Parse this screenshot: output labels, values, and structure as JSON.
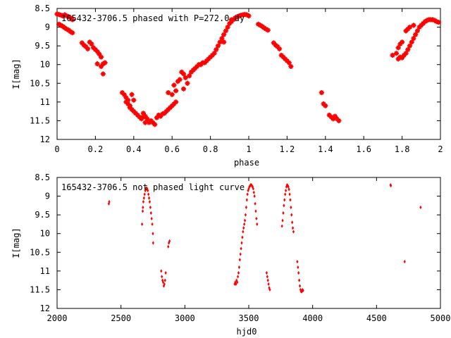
{
  "colors": {
    "marker": "#ff0000",
    "axis": "#000000",
    "background": "#ffffff"
  },
  "chart_data": [
    {
      "type": "scatter",
      "title": "165432-3706.5 phased with P=272.0 dy",
      "xlabel": "phase",
      "ylabel": "I[mag]",
      "xlim": [
        0,
        2
      ],
      "ylim": [
        12,
        8.5
      ],
      "y_inverted": true,
      "grid": false,
      "x_ticks": [
        "0",
        "0.2",
        "0.4",
        "0.6",
        "0.8",
        "1",
        "1.2",
        "1.4",
        "1.6",
        "1.8",
        "2"
      ],
      "y_ticks": [
        "8.5",
        "9",
        "9.5",
        "10",
        "10.5",
        "11",
        "11.5",
        "12"
      ],
      "marker": "star",
      "points": [
        [
          0.0,
          8.65
        ],
        [
          0.01,
          8.66
        ],
        [
          0.02,
          8.68
        ],
        [
          0.03,
          8.7
        ],
        [
          0.04,
          8.67
        ],
        [
          0.05,
          8.7
        ],
        [
          0.06,
          8.72
        ],
        [
          0.07,
          8.75
        ],
        [
          0.08,
          8.8
        ],
        [
          0.01,
          8.92
        ],
        [
          0.02,
          8.95
        ],
        [
          0.03,
          8.98
        ],
        [
          0.04,
          9.02
        ],
        [
          0.05,
          9.05
        ],
        [
          0.06,
          9.08
        ],
        [
          0.07,
          9.12
        ],
        [
          0.08,
          9.15
        ],
        [
          0.13,
          9.42
        ],
        [
          0.14,
          9.48
        ],
        [
          0.15,
          9.52
        ],
        [
          0.16,
          9.58
        ],
        [
          0.17,
          9.4
        ],
        [
          0.18,
          9.45
        ],
        [
          0.19,
          9.55
        ],
        [
          0.2,
          9.6
        ],
        [
          0.21,
          9.65
        ],
        [
          0.22,
          9.72
        ],
        [
          0.23,
          9.8
        ],
        [
          0.21,
          9.98
        ],
        [
          0.24,
          9.98
        ],
        [
          0.25,
          9.95
        ],
        [
          0.23,
          10.05
        ],
        [
          0.24,
          10.25
        ],
        [
          0.34,
          10.75
        ],
        [
          0.35,
          10.8
        ],
        [
          0.36,
          10.88
        ],
        [
          0.37,
          10.95
        ],
        [
          0.36,
          11.0
        ],
        [
          0.37,
          11.05
        ],
        [
          0.38,
          11.1
        ],
        [
          0.38,
          11.15
        ],
        [
          0.39,
          11.2
        ],
        [
          0.4,
          11.25
        ],
        [
          0.41,
          11.3
        ],
        [
          0.39,
          10.8
        ],
        [
          0.4,
          10.95
        ],
        [
          0.42,
          11.35
        ],
        [
          0.43,
          11.4
        ],
        [
          0.44,
          11.45
        ],
        [
          0.45,
          11.4
        ],
        [
          0.45,
          11.3
        ],
        [
          0.46,
          11.38
        ],
        [
          0.47,
          11.45
        ],
        [
          0.48,
          11.55
        ],
        [
          0.46,
          11.55
        ],
        [
          0.49,
          11.5
        ],
        [
          0.5,
          11.55
        ],
        [
          0.51,
          11.6
        ],
        [
          0.52,
          11.42
        ],
        [
          0.53,
          11.35
        ],
        [
          0.54,
          11.38
        ],
        [
          0.55,
          11.32
        ],
        [
          0.56,
          11.3
        ],
        [
          0.57,
          11.25
        ],
        [
          0.58,
          11.2
        ],
        [
          0.59,
          11.15
        ],
        [
          0.6,
          11.1
        ],
        [
          0.61,
          11.05
        ],
        [
          0.62,
          11.0
        ],
        [
          0.62,
          10.7
        ],
        [
          0.58,
          10.75
        ],
        [
          0.6,
          10.8
        ],
        [
          0.61,
          10.55
        ],
        [
          0.63,
          10.45
        ],
        [
          0.64,
          10.4
        ],
        [
          0.65,
          10.2
        ],
        [
          0.66,
          10.25
        ],
        [
          0.67,
          10.35
        ],
        [
          0.68,
          10.5
        ],
        [
          0.66,
          10.65
        ],
        [
          0.69,
          10.3
        ],
        [
          0.7,
          10.2
        ],
        [
          0.71,
          10.15
        ],
        [
          0.72,
          10.1
        ],
        [
          0.73,
          10.05
        ],
        [
          0.74,
          10.0
        ],
        [
          0.75,
          10.0
        ],
        [
          0.76,
          9.95
        ],
        [
          0.77,
          9.95
        ],
        [
          0.78,
          9.9
        ],
        [
          0.79,
          9.85
        ],
        [
          0.8,
          9.8
        ],
        [
          0.81,
          9.75
        ],
        [
          0.82,
          9.7
        ],
        [
          0.83,
          9.6
        ],
        [
          0.84,
          9.5
        ],
        [
          0.85,
          9.4
        ],
        [
          0.86,
          9.3
        ],
        [
          0.87,
          9.2
        ],
        [
          0.87,
          9.4
        ],
        [
          0.88,
          9.1
        ],
        [
          0.89,
          9.0
        ],
        [
          0.9,
          8.9
        ],
        [
          0.91,
          8.85
        ],
        [
          0.92,
          8.8
        ],
        [
          0.93,
          8.75
        ],
        [
          0.94,
          8.72
        ],
        [
          0.95,
          8.7
        ],
        [
          0.96,
          8.68
        ],
        [
          0.97,
          8.67
        ],
        [
          0.98,
          8.66
        ],
        [
          0.99,
          8.67
        ],
        [
          1.0,
          8.7
        ],
        [
          0.91,
          8.8
        ],
        [
          0.93,
          8.75
        ],
        [
          0.95,
          8.7
        ],
        [
          1.05,
          8.92
        ],
        [
          1.06,
          8.95
        ],
        [
          1.07,
          8.98
        ],
        [
          1.08,
          9.02
        ],
        [
          1.09,
          9.05
        ],
        [
          1.1,
          9.08
        ],
        [
          1.13,
          9.42
        ],
        [
          1.14,
          9.48
        ],
        [
          1.15,
          9.52
        ],
        [
          1.16,
          9.58
        ],
        [
          1.17,
          9.75
        ],
        [
          1.18,
          9.8
        ],
        [
          1.19,
          9.85
        ],
        [
          1.2,
          9.9
        ],
        [
          1.21,
          9.95
        ],
        [
          1.22,
          10.05
        ],
        [
          1.38,
          10.75
        ],
        [
          1.39,
          11.05
        ],
        [
          1.4,
          11.1
        ],
        [
          1.42,
          11.35
        ],
        [
          1.43,
          11.4
        ],
        [
          1.44,
          11.45
        ],
        [
          1.45,
          11.38
        ],
        [
          1.46,
          11.45
        ],
        [
          1.47,
          11.5
        ],
        [
          1.75,
          9.75
        ],
        [
          1.77,
          9.7
        ],
        [
          1.78,
          9.55
        ],
        [
          1.79,
          9.45
        ],
        [
          1.8,
          9.4
        ],
        [
          1.78,
          9.85
        ],
        [
          1.79,
          9.8
        ],
        [
          1.8,
          9.82
        ],
        [
          1.81,
          9.75
        ],
        [
          1.82,
          9.7
        ],
        [
          1.83,
          9.6
        ],
        [
          1.84,
          9.5
        ],
        [
          1.85,
          9.4
        ],
        [
          1.86,
          9.3
        ],
        [
          1.87,
          9.2
        ],
        [
          1.88,
          9.1
        ],
        [
          1.89,
          9.0
        ],
        [
          1.9,
          8.95
        ],
        [
          1.91,
          8.9
        ],
        [
          1.92,
          8.85
        ],
        [
          1.93,
          8.82
        ],
        [
          1.94,
          8.8
        ],
        [
          1.95,
          8.8
        ],
        [
          1.96,
          8.8
        ],
        [
          1.97,
          8.82
        ],
        [
          1.98,
          8.85
        ],
        [
          1.99,
          8.87
        ],
        [
          1.82,
          9.1
        ],
        [
          1.83,
          9.05
        ],
        [
          1.84,
          9.0
        ],
        [
          1.86,
          8.95
        ]
      ]
    },
    {
      "type": "scatter",
      "title": "165432-3706.5 not phased light curve",
      "xlabel": "hjd0",
      "ylabel": "I[mag]",
      "xlim": [
        2000,
        5000
      ],
      "ylim": [
        12,
        8.5
      ],
      "y_inverted": true,
      "grid": false,
      "x_ticks": [
        "2000",
        "2500",
        "3000",
        "3500",
        "4000",
        "4500",
        "5000"
      ],
      "y_ticks": [
        "8.5",
        "9",
        "9.5",
        "10",
        "10.5",
        "11",
        "11.5",
        "12"
      ],
      "marker": "diamond",
      "points": [
        [
          2405,
          9.2
        ],
        [
          2408,
          9.15
        ],
        [
          2665,
          9.75
        ],
        [
          2670,
          9.4
        ],
        [
          2672,
          9.3
        ],
        [
          2675,
          9.15
        ],
        [
          2680,
          9.05
        ],
        [
          2685,
          8.95
        ],
        [
          2690,
          8.85
        ],
        [
          2695,
          8.8
        ],
        [
          2700,
          8.78
        ],
        [
          2705,
          8.8
        ],
        [
          2710,
          8.85
        ],
        [
          2715,
          8.95
        ],
        [
          2720,
          9.05
        ],
        [
          2725,
          9.15
        ],
        [
          2730,
          9.3
        ],
        [
          2735,
          9.45
        ],
        [
          2740,
          9.6
        ],
        [
          2745,
          9.75
        ],
        [
          2750,
          10.0
        ],
        [
          2752,
          10.25
        ],
        [
          2815,
          11.0
        ],
        [
          2820,
          11.15
        ],
        [
          2825,
          11.25
        ],
        [
          2830,
          11.3
        ],
        [
          2835,
          11.4
        ],
        [
          2840,
          11.35
        ],
        [
          2845,
          11.25
        ],
        [
          2850,
          11.05
        ],
        [
          2870,
          10.35
        ],
        [
          2875,
          10.25
        ],
        [
          2880,
          10.2
        ],
        [
          3390,
          11.35
        ],
        [
          3395,
          11.3
        ],
        [
          3400,
          11.35
        ],
        [
          3405,
          11.25
        ],
        [
          3410,
          11.3
        ],
        [
          3415,
          11.15
        ],
        [
          3420,
          11.05
        ],
        [
          3425,
          10.9
        ],
        [
          3430,
          10.7
        ],
        [
          3435,
          10.55
        ],
        [
          3440,
          10.4
        ],
        [
          3445,
          10.25
        ],
        [
          3450,
          10.1
        ],
        [
          3455,
          9.95
        ],
        [
          3460,
          9.85
        ],
        [
          3465,
          9.75
        ],
        [
          3470,
          9.65
        ],
        [
          3475,
          9.5
        ],
        [
          3480,
          9.3
        ],
        [
          3485,
          9.1
        ],
        [
          3490,
          8.95
        ],
        [
          3495,
          8.85
        ],
        [
          3500,
          8.8
        ],
        [
          3505,
          8.75
        ],
        [
          3510,
          8.72
        ],
        [
          3515,
          8.7
        ],
        [
          3520,
          8.7
        ],
        [
          3525,
          8.72
        ],
        [
          3530,
          8.75
        ],
        [
          3535,
          8.8
        ],
        [
          3540,
          8.9
        ],
        [
          3545,
          9.0
        ],
        [
          3550,
          9.2
        ],
        [
          3555,
          9.4
        ],
        [
          3560,
          9.6
        ],
        [
          3565,
          9.75
        ],
        [
          3640,
          11.05
        ],
        [
          3645,
          11.15
        ],
        [
          3650,
          11.25
        ],
        [
          3655,
          11.35
        ],
        [
          3660,
          11.45
        ],
        [
          3665,
          11.5
        ],
        [
          3760,
          9.8
        ],
        [
          3765,
          9.65
        ],
        [
          3770,
          9.45
        ],
        [
          3775,
          9.25
        ],
        [
          3780,
          9.1
        ],
        [
          3785,
          8.95
        ],
        [
          3790,
          8.85
        ],
        [
          3795,
          8.75
        ],
        [
          3800,
          8.7
        ],
        [
          3805,
          8.72
        ],
        [
          3810,
          8.75
        ],
        [
          3815,
          8.82
        ],
        [
          3820,
          8.95
        ],
        [
          3825,
          9.1
        ],
        [
          3830,
          9.3
        ],
        [
          3835,
          9.5
        ],
        [
          3840,
          9.7
        ],
        [
          3845,
          9.85
        ],
        [
          3850,
          9.95
        ],
        [
          3880,
          10.75
        ],
        [
          3885,
          10.9
        ],
        [
          3890,
          11.05
        ],
        [
          3895,
          11.25
        ],
        [
          3900,
          11.4
        ],
        [
          3905,
          11.5
        ],
        [
          3910,
          11.55
        ],
        [
          3915,
          11.55
        ],
        [
          3920,
          11.5
        ],
        [
          3925,
          11.52
        ],
        [
          4610,
          8.7
        ],
        [
          4612,
          8.72
        ],
        [
          4720,
          10.75
        ],
        [
          4845,
          9.3
        ]
      ]
    }
  ]
}
